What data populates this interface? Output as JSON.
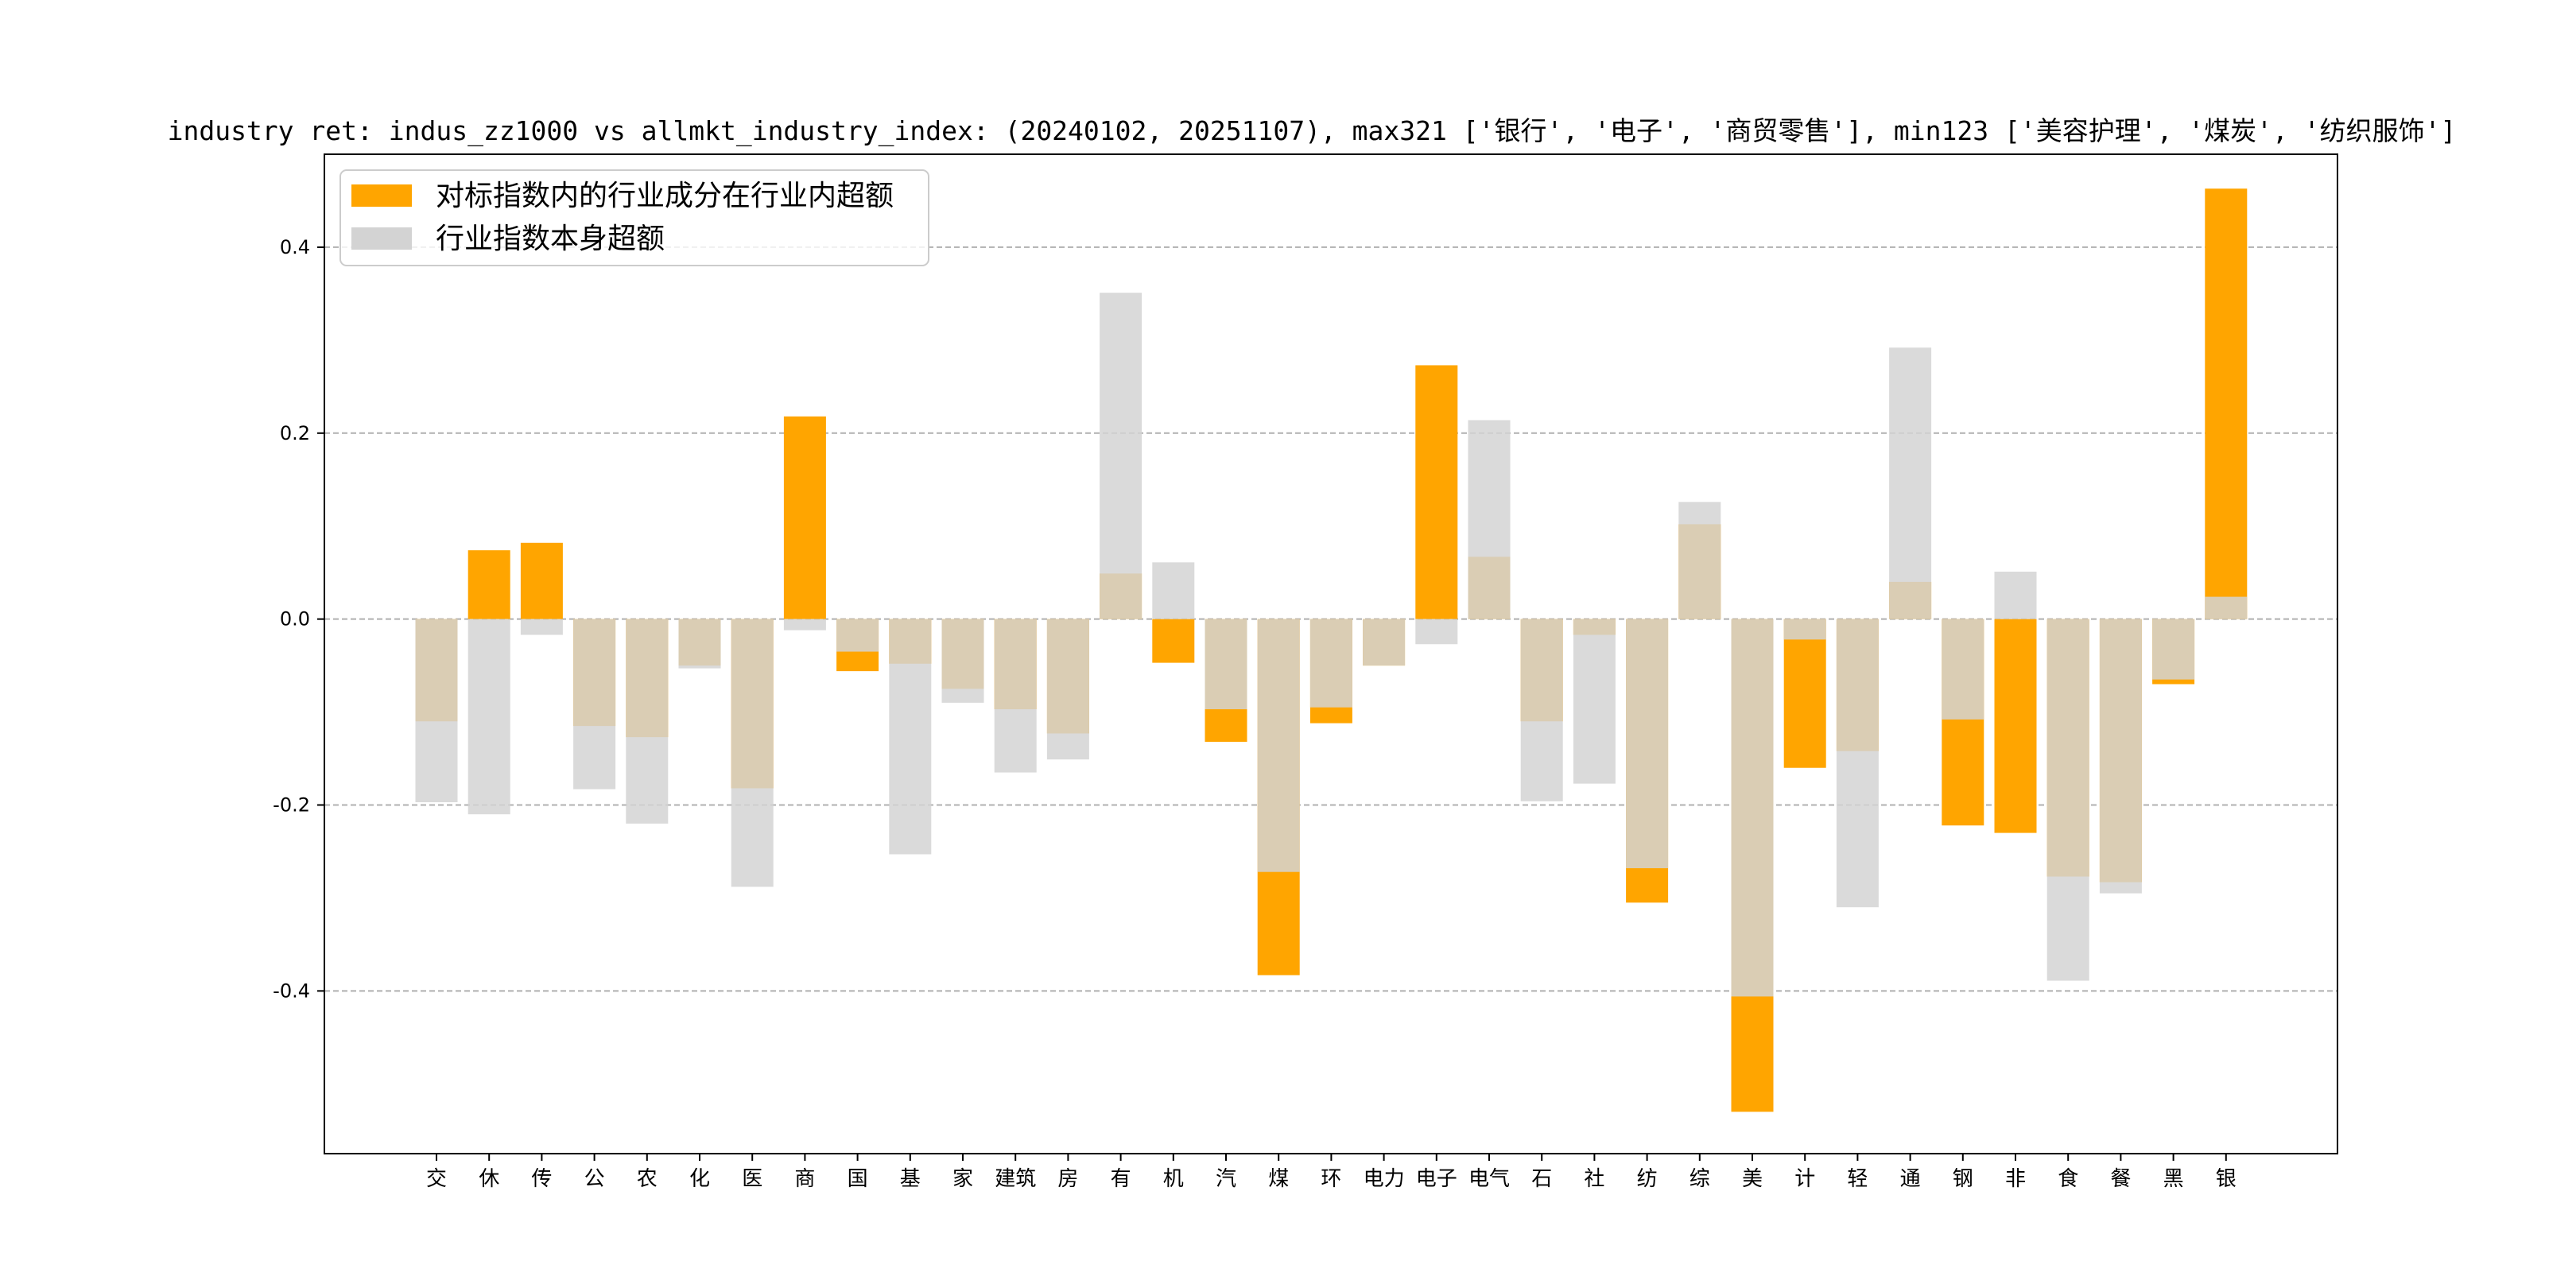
{
  "chart_data": {
    "type": "bar",
    "title": "industry ret: indus_zz1000 vs allmkt_industry_index: (20240102, 20251107), max321 ['银行', '电子', '商贸零售'], min123 ['美容护理', '煤炭', '纺织服饰']",
    "xlabel": "",
    "ylabel": "",
    "ylim": [
      -0.575,
      0.5
    ],
    "yticks": [
      -0.4,
      -0.2,
      0.0,
      0.2,
      0.4
    ],
    "ytick_labels": [
      "-0.4",
      "-0.2",
      "0.0",
      "0.2",
      "0.4"
    ],
    "grid": "y-dashed",
    "legend_position": "upper-left",
    "categories": [
      "交",
      "休",
      "传",
      "公",
      "农",
      "化",
      "医",
      "商",
      "国",
      "基",
      "家",
      "建筑",
      "房",
      "有",
      "机",
      "汽",
      "煤",
      "环",
      "电力",
      "电子",
      "电气",
      "石",
      "社",
      "纺",
      "综",
      "美",
      "计",
      "轻",
      "通",
      "钢",
      "非",
      "食",
      "餐",
      "黑",
      "银"
    ],
    "series": [
      {
        "name": "对标指数内的行业成分在行业内超额",
        "color": "#FFA500",
        "values": [
          -0.11,
          0.074,
          0.082,
          -0.115,
          -0.127,
          -0.05,
          -0.182,
          0.218,
          -0.056,
          -0.048,
          -0.075,
          -0.097,
          -0.123,
          0.049,
          -0.047,
          -0.132,
          -0.383,
          -0.112,
          -0.05,
          0.273,
          0.067,
          -0.11,
          -0.017,
          -0.305,
          0.102,
          -0.53,
          -0.16,
          -0.142,
          0.04,
          -0.222,
          -0.23,
          -0.277,
          -0.283,
          -0.07,
          0.463
        ]
      },
      {
        "name": "行业指数本身超额",
        "color": "#D3D3D3",
        "values": [
          -0.197,
          -0.21,
          -0.017,
          -0.183,
          -0.22,
          -0.053,
          -0.288,
          -0.012,
          -0.035,
          -0.253,
          -0.09,
          -0.165,
          -0.151,
          0.351,
          0.061,
          -0.097,
          -0.272,
          -0.095,
          -0.05,
          -0.027,
          0.214,
          -0.196,
          -0.177,
          -0.268,
          0.126,
          -0.406,
          -0.022,
          -0.31,
          0.292,
          -0.108,
          0.051,
          -0.389,
          -0.295,
          -0.065,
          0.024
        ]
      }
    ]
  }
}
